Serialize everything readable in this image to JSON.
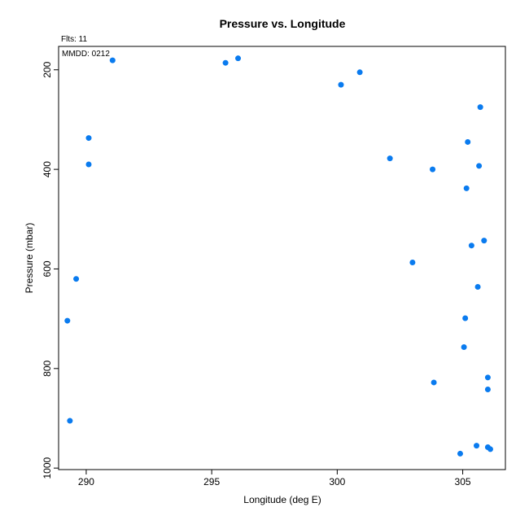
{
  "chart_data": {
    "type": "scatter",
    "title": "Pressure vs. Longitude",
    "xlabel": "Longitude (deg E)",
    "ylabel": "Pressure (mbar)",
    "xlim": [
      288.9,
      306.7
    ],
    "ylim": [
      1003,
      153
    ],
    "y_inverted": true,
    "grid": false,
    "point_color": "#0a7bef",
    "x_ticks": [
      290,
      295,
      300,
      305
    ],
    "x_tick_labels": [
      "290",
      "295",
      "300",
      "305"
    ],
    "y_ticks": [
      200,
      400,
      600,
      800,
      1000
    ],
    "y_tick_labels": [
      "200",
      "400",
      "600",
      "800",
      "1000"
    ],
    "annotations": {
      "flts": "Flts: 11",
      "mmdd": "MMDD: 0212"
    },
    "series": [
      {
        "x": [
          291.05,
          296.05,
          295.55,
          300.9,
          300.15,
          290.1,
          290.1,
          289.6,
          289.25,
          289.35,
          302.1,
          303.8,
          303.0,
          303.85,
          305.7,
          305.2,
          305.65,
          305.15,
          305.85,
          305.35,
          305.6,
          305.1,
          305.05,
          306.0,
          306.0,
          305.55,
          304.9,
          306.0,
          306.1
        ],
        "y": [
          181,
          177,
          186,
          205,
          230,
          337,
          390,
          620,
          704,
          905,
          378,
          400,
          587,
          828,
          275,
          345,
          393,
          438,
          543,
          553,
          636,
          699,
          757,
          818,
          842,
          955,
          971,
          958,
          962
        ]
      }
    ]
  }
}
